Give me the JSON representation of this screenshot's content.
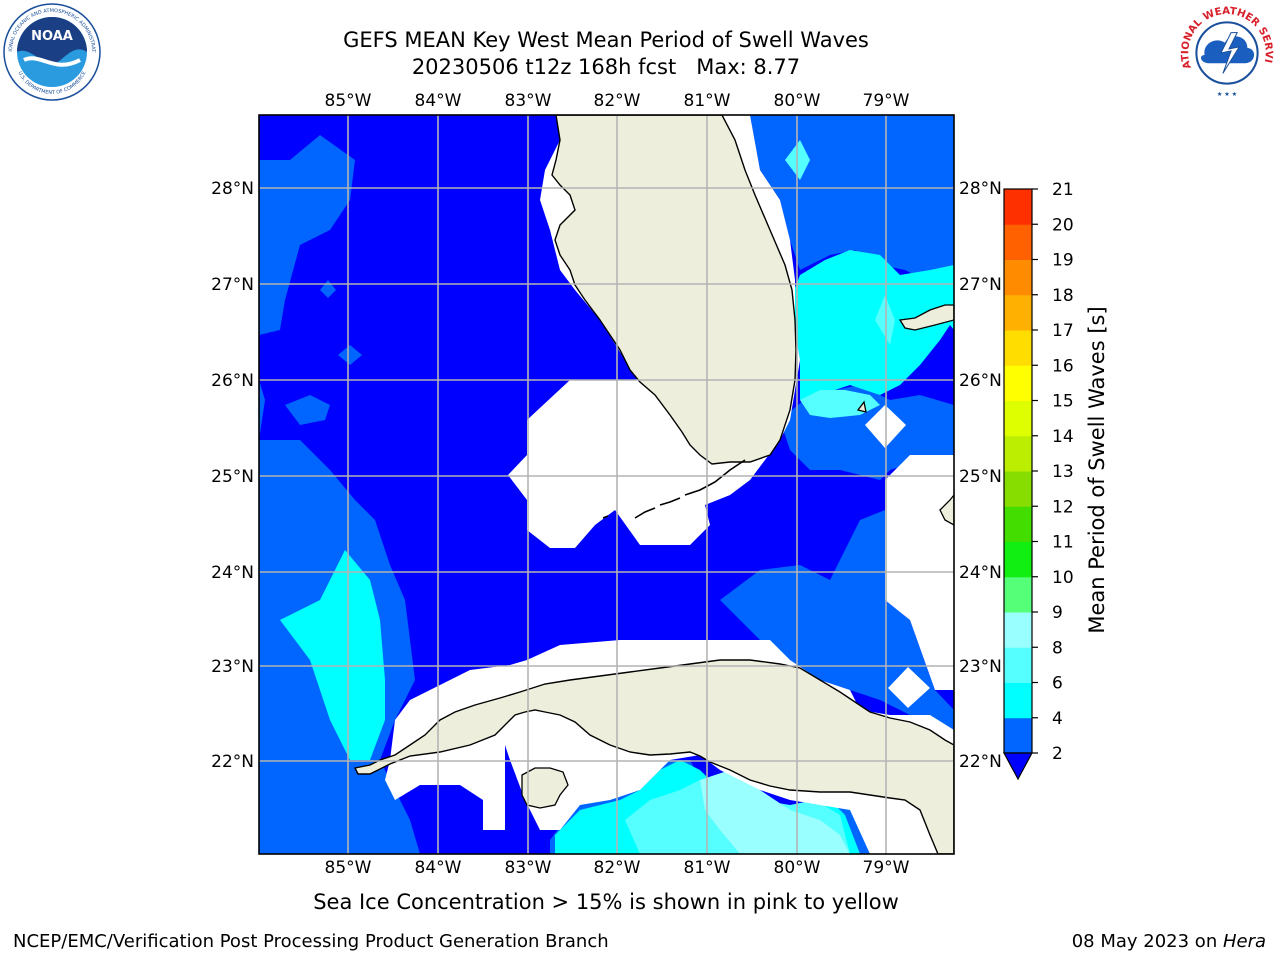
{
  "header": {
    "title_line1": "GEFS MEAN Key West Mean Period of Swell Waves",
    "title_line2": "20230506 t12z 168h fcst   Max: 8.77"
  },
  "logos": {
    "left": "noaa-logo",
    "left_text": "NOAA",
    "left_ring_text": "NATIONAL OCEANIC AND ATMOSPHERIC ADMINISTRATION",
    "left_ring_text_bottom": "U.S. DEPARTMENT OF COMMERCE",
    "right": "nws-logo",
    "right_ring_text": "NATIONAL WEATHER SERVICE"
  },
  "map": {
    "lon_labels": [
      "85°W",
      "84°W",
      "83°W",
      "82°W",
      "81°W",
      "80°W",
      "79°W"
    ],
    "lat_labels": [
      "28°N",
      "27°N",
      "26°N",
      "25°N",
      "24°N",
      "23°N",
      "22°N"
    ],
    "lon_range": [
      -86.0,
      -78.3
    ],
    "lat_range": [
      21.1,
      28.75
    ],
    "grid": true,
    "colors": {
      "land": "#eeeedc",
      "band_2_4": "#0066ff",
      "below_2": "#0000ff",
      "band_4_6": "#00ffff",
      "band_6_8": "#55ffff",
      "band_8_9": "#99ffff",
      "grid": "#b4b4b4",
      "no_data": "#ffffff"
    }
  },
  "colorbar": {
    "label": "Mean Period of Swell Waves [s]",
    "ticks": [
      "2",
      "4",
      "6",
      "8",
      "9",
      "10",
      "11",
      "12",
      "13",
      "14",
      "15",
      "16",
      "17",
      "18",
      "19",
      "20",
      "21"
    ],
    "colors": [
      "#0066ff",
      "#00ffff",
      "#55ffff",
      "#99ffff",
      "#55ff77",
      "#11ee11",
      "#44dd00",
      "#88dd00",
      "#bbee00",
      "#ddff00",
      "#ffff00",
      "#ffdd00",
      "#ffb000",
      "#ff8c00",
      "#ff6000",
      "#ff3000",
      "#ff0000"
    ],
    "under_color": "#0000ff"
  },
  "footer": {
    "note": "Sea Ice Concentration > 15% is shown in pink to yellow",
    "left": "NCEP/EMC/Verification Post Processing Product Generation Branch",
    "date": "08 May 2023 on ",
    "machine": "Hera"
  }
}
